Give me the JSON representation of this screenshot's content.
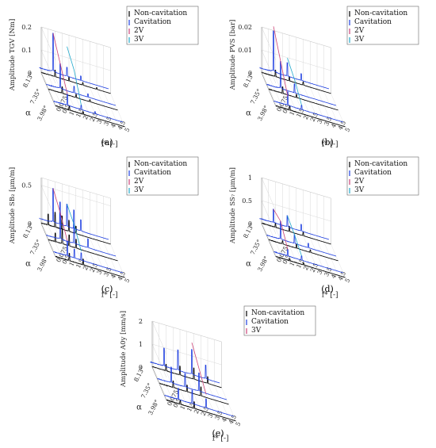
{
  "chart_data": [
    {
      "type": "line",
      "panel": "(a)",
      "zlabel": "Amplitude TGV [Nm]",
      "ylabel": "α",
      "xlabel": "f* [-]",
      "z_ticks": [
        "0",
        "0.1",
        "0.2"
      ],
      "z_tick_values": [
        0,
        0.1,
        0.2
      ],
      "zlim": [
        0,
        0.2
      ],
      "alpha_ticks": [
        "8.13°",
        "7.35°",
        "3.98°"
      ],
      "f_ticks": [
        "0.075",
        "0.5",
        "1",
        "1.5",
        "2",
        "2.5",
        "3",
        "3.5",
        "4",
        "4.5",
        "5"
      ],
      "f_tick_values": [
        0.075,
        0.5,
        1,
        1.5,
        2,
        2.5,
        3,
        3.5,
        4,
        4.5,
        5
      ],
      "xlim": [
        0,
        5
      ],
      "legend": [
        "Non-cavitation",
        "Cavitation",
        "2V",
        "3V"
      ],
      "legend_placement": "top-right",
      "series": [
        {
          "name": "Non-cavitation",
          "alpha": "8.13°",
          "color": "#000000",
          "peaks": [
            [
              1,
              0.03
            ],
            [
              2,
              0.018
            ],
            [
              3,
              0.012
            ],
            [
              4,
              0.008
            ]
          ]
        },
        {
          "name": "Cavitation",
          "alpha": "8.13°",
          "color": "#1f3fe0",
          "peaks": [
            [
              1,
              0.17
            ],
            [
              2,
              0.04
            ],
            [
              3,
              0.02
            ]
          ]
        },
        {
          "name": "Non-cavitation",
          "alpha": "7.35°",
          "color": "#000000",
          "peaks": [
            [
              1,
              0.03
            ],
            [
              2,
              0.015
            ],
            [
              3,
              0.01
            ]
          ]
        },
        {
          "name": "Cavitation",
          "alpha": "7.35°",
          "color": "#1f3fe0",
          "peaks": [
            [
              1,
              0.11
            ],
            [
              2,
              0.03
            ],
            [
              3,
              0.015
            ]
          ]
        },
        {
          "name": "Non-cavitation",
          "alpha": "3.98°",
          "color": "#000000",
          "peaks": [
            [
              1,
              0.02
            ],
            [
              2,
              0.012
            ]
          ]
        },
        {
          "name": "Cavitation",
          "alpha": "3.98°",
          "color": "#1f3fe0",
          "peaks": [
            [
              1,
              0.05
            ],
            [
              2,
              0.02
            ],
            [
              3,
              0.01
            ]
          ]
        }
      ],
      "harmonic_traces": [
        {
          "name": "2V",
          "color": "#cc4477",
          "values": [
            0.17,
            0.11,
            0.05
          ]
        },
        {
          "name": "3V",
          "color": "#22aacc",
          "values": [
            0.13,
            0.1,
            0.02
          ]
        }
      ]
    },
    {
      "type": "line",
      "panel": "(b)",
      "zlabel": "Amplitude PVS [bar]",
      "ylabel": "α",
      "xlabel": "f* [-]",
      "z_ticks": [
        "0",
        "0.01",
        "0.02"
      ],
      "z_tick_values": [
        0,
        0.01,
        0.02
      ],
      "zlim": [
        0,
        0.02
      ],
      "alpha_ticks": [
        "8.13°",
        "7.35°",
        "3.98°"
      ],
      "f_ticks": [
        "0.075",
        "0.5",
        "1",
        "1.5",
        "2",
        "2.5",
        "3",
        "3.5",
        "4",
        "4.5",
        "5"
      ],
      "f_tick_values": [
        0.075,
        0.5,
        1,
        1.5,
        2,
        2.5,
        3,
        3.5,
        4,
        4.5,
        5
      ],
      "xlim": [
        0,
        5
      ],
      "legend": [
        "Non-cavitation",
        "Cavitation",
        "2V",
        "3V"
      ],
      "legend_placement": "top-right",
      "series": [
        {
          "name": "Non-cavitation",
          "alpha": "8.13°",
          "color": "#000000",
          "peaks": [
            [
              1,
              0.003
            ],
            [
              2,
              0.002
            ],
            [
              3,
              0.0015
            ]
          ]
        },
        {
          "name": "Cavitation",
          "alpha": "8.13°",
          "color": "#1f3fe0",
          "peaks": [
            [
              1,
              0.018
            ],
            [
              2,
              0.006
            ],
            [
              3,
              0.003
            ]
          ]
        },
        {
          "name": "Non-cavitation",
          "alpha": "7.35°",
          "color": "#000000",
          "peaks": [
            [
              1,
              0.003
            ],
            [
              2,
              0.0015
            ]
          ]
        },
        {
          "name": "Cavitation",
          "alpha": "7.35°",
          "color": "#1f3fe0",
          "peaks": [
            [
              1,
              0.012
            ],
            [
              2,
              0.004
            ]
          ]
        },
        {
          "name": "Non-cavitation",
          "alpha": "3.98°",
          "color": "#000000",
          "peaks": [
            [
              1,
              0.002
            ]
          ]
        },
        {
          "name": "Cavitation",
          "alpha": "3.98°",
          "color": "#1f3fe0",
          "peaks": [
            [
              1,
              0.006
            ],
            [
              2,
              0.002
            ]
          ]
        }
      ],
      "harmonic_traces": [
        {
          "name": "2V",
          "color": "#cc4477",
          "values": [
            0.02,
            0.012,
            0.004
          ]
        },
        {
          "name": "3V",
          "color": "#22aacc",
          "values": [
            0.008,
            0.006,
            0.002
          ]
        }
      ]
    },
    {
      "type": "line",
      "panel": "(c)",
      "zlabel": "Amplitude SB₂ [µm/m]",
      "ylabel": "α",
      "xlabel": "f* [-]",
      "z_ticks": [
        "0",
        "0.5"
      ],
      "z_tick_values": [
        0,
        0.5
      ],
      "zlim": [
        0,
        0.6
      ],
      "alpha_ticks": [
        "8.13°",
        "7.35°",
        "3.98°"
      ],
      "f_ticks": [
        "0.075",
        "0.5",
        "1",
        "1.5",
        "2",
        "2.5",
        "3",
        "3.5",
        "4",
        "4.5",
        "5"
      ],
      "f_tick_values": [
        0.075,
        0.5,
        1,
        1.5,
        2,
        2.5,
        3,
        3.5,
        4,
        4.5,
        5
      ],
      "xlim": [
        0,
        5
      ],
      "legend": [
        "Non-cavitation",
        "Cavitation",
        "2V",
        "3V"
      ],
      "legend_placement": "top-right",
      "series": [
        {
          "name": "Non-cavitation",
          "alpha": "8.13°",
          "color": "#000000",
          "peaks": [
            [
              0.5,
              0.15
            ],
            [
              1,
              0.2
            ],
            [
              1.5,
              0.18
            ],
            [
              2,
              0.15
            ],
            [
              2.5,
              0.1
            ]
          ]
        },
        {
          "name": "Cavitation",
          "alpha": "8.13°",
          "color": "#1f3fe0",
          "peaks": [
            [
              1,
              0.45
            ],
            [
              1.5,
              0.3
            ],
            [
              2,
              0.3
            ],
            [
              2.5,
              0.25
            ],
            [
              3,
              0.15
            ]
          ]
        },
        {
          "name": "Non-cavitation",
          "alpha": "7.35°",
          "color": "#000000",
          "peaks": [
            [
              0.5,
              0.12
            ],
            [
              1,
              0.2
            ],
            [
              1.5,
              0.15
            ],
            [
              2,
              0.12
            ]
          ]
        },
        {
          "name": "Cavitation",
          "alpha": "7.35°",
          "color": "#1f3fe0",
          "peaks": [
            [
              1,
              0.35
            ],
            [
              2,
              0.25
            ],
            [
              3,
              0.12
            ]
          ]
        },
        {
          "name": "Non-cavitation",
          "alpha": "3.98°",
          "color": "#000000",
          "peaks": [
            [
              1,
              0.1
            ],
            [
              2,
              0.08
            ]
          ]
        },
        {
          "name": "Cavitation",
          "alpha": "3.98°",
          "color": "#1f3fe0",
          "peaks": [
            [
              1,
              0.2
            ],
            [
              1.5,
              0.12
            ],
            [
              2,
              0.1
            ]
          ]
        }
      ],
      "harmonic_traces": [
        {
          "name": "2V",
          "color": "#cc4477",
          "values": [
            0.45,
            0.35,
            0.2
          ]
        },
        {
          "name": "3V",
          "color": "#22aacc",
          "values": [
            0.3,
            0.25,
            0.12
          ]
        }
      ]
    },
    {
      "type": "line",
      "panel": "(d)",
      "zlabel": "Amplitude SS₇ [µm/m]",
      "ylabel": "α",
      "xlabel": "f* [-]",
      "z_ticks": [
        "0",
        "0.5",
        "1"
      ],
      "z_tick_values": [
        0,
        0.5,
        1
      ],
      "zlim": [
        0,
        1
      ],
      "alpha_ticks": [
        "8.13°",
        "7.35°",
        "3.98°"
      ],
      "f_ticks": [
        "0.075",
        "0.5",
        "1",
        "1.5",
        "2",
        "2.5",
        "3",
        "3.5",
        "4",
        "4.5",
        "5"
      ],
      "f_tick_values": [
        0.075,
        0.5,
        1,
        1.5,
        2,
        2.5,
        3,
        3.5,
        4,
        4.5,
        5
      ],
      "xlim": [
        0,
        5
      ],
      "legend": [
        "Non-cavitation",
        "Cavitation",
        "2V",
        "3V"
      ],
      "legend_placement": "top-right",
      "series": [
        {
          "name": "Non-cavitation",
          "alpha": "8.13°",
          "color": "#000000",
          "peaks": [
            [
              1,
              0.1
            ],
            [
              2,
              0.12
            ],
            [
              3,
              0.08
            ]
          ]
        },
        {
          "name": "Cavitation",
          "alpha": "8.13°",
          "color": "#1f3fe0",
          "peaks": [
            [
              1,
              0.3
            ],
            [
              2,
              0.25
            ],
            [
              3,
              0.15
            ]
          ]
        },
        {
          "name": "Non-cavitation",
          "alpha": "7.35°",
          "color": "#000000",
          "peaks": [
            [
              1,
              0.08
            ],
            [
              2,
              0.1
            ],
            [
              3,
              0.06
            ]
          ]
        },
        {
          "name": "Cavitation",
          "alpha": "7.35°",
          "color": "#1f3fe0",
          "peaks": [
            [
              1,
              0.4
            ],
            [
              2,
              0.2
            ],
            [
              3,
              0.1
            ]
          ]
        },
        {
          "name": "Non-cavitation",
          "alpha": "3.98°",
          "color": "#000000",
          "peaks": [
            [
              1,
              0.05
            ],
            [
              2,
              0.05
            ]
          ]
        },
        {
          "name": "Cavitation",
          "alpha": "3.98°",
          "color": "#1f3fe0",
          "peaks": [
            [
              1,
              0.15
            ],
            [
              2,
              0.1
            ]
          ]
        }
      ],
      "harmonic_traces": [
        {
          "name": "2V",
          "color": "#cc4477",
          "values": [
            0.3,
            0.4,
            0.15
          ]
        },
        {
          "name": "3V",
          "color": "#22aacc",
          "values": [
            0.25,
            0.2,
            0.1
          ]
        }
      ]
    },
    {
      "type": "line",
      "panel": "(e)",
      "zlabel": "Amplitude A0y [mm/s]",
      "ylabel": "α",
      "xlabel": "f* [-]",
      "z_ticks": [
        "0",
        "1",
        "2"
      ],
      "z_tick_values": [
        0,
        1,
        2
      ],
      "zlim": [
        0,
        2
      ],
      "alpha_ticks": [
        "8.13°",
        "7.35°",
        "3.98°"
      ],
      "f_ticks": [
        "0.075",
        "0.5",
        "1",
        "1.5",
        "2",
        "2.5",
        "3",
        "3.5",
        "4",
        "4.5",
        "5"
      ],
      "f_tick_values": [
        0.075,
        0.5,
        1,
        1.5,
        2,
        2.5,
        3,
        3.5,
        4,
        4.5,
        5
      ],
      "xlim": [
        0,
        5
      ],
      "legend": [
        "Non-cavitation",
        "Cavitation",
        "3V"
      ],
      "legend_placement": "top-right",
      "series": [
        {
          "name": "Non-cavitation",
          "alpha": "8.13°",
          "color": "#000000",
          "peaks": [
            [
              1,
              0.3
            ],
            [
              2,
              0.4
            ],
            [
              3,
              0.5
            ],
            [
              4,
              0.3
            ]
          ]
        },
        {
          "name": "Cavitation",
          "alpha": "8.13°",
          "color": "#1f3fe0",
          "peaks": [
            [
              1,
              0.8
            ],
            [
              2,
              0.9
            ],
            [
              3,
              1.1
            ],
            [
              4,
              0.6
            ]
          ]
        },
        {
          "name": "Non-cavitation",
          "alpha": "7.35°",
          "color": "#000000",
          "peaks": [
            [
              1,
              0.3
            ],
            [
              2,
              0.3
            ],
            [
              3,
              0.4
            ]
          ]
        },
        {
          "name": "Cavitation",
          "alpha": "7.35°",
          "color": "#1f3fe0",
          "peaks": [
            [
              1,
              0.7
            ],
            [
              2,
              0.6
            ],
            [
              3,
              0.8
            ]
          ]
        },
        {
          "name": "Non-cavitation",
          "alpha": "3.98°",
          "color": "#000000",
          "peaks": [
            [
              1,
              0.2
            ],
            [
              2,
              0.3
            ]
          ]
        },
        {
          "name": "Cavitation",
          "alpha": "3.98°",
          "color": "#1f3fe0",
          "peaks": [
            [
              1,
              0.5
            ],
            [
              2,
              0.6
            ],
            [
              3,
              0.4
            ]
          ]
        }
      ],
      "harmonic_traces": [
        {
          "name": "3V",
          "color": "#cc4477",
          "values": [
            1.4,
            1.0,
            0.6
          ]
        }
      ]
    }
  ]
}
